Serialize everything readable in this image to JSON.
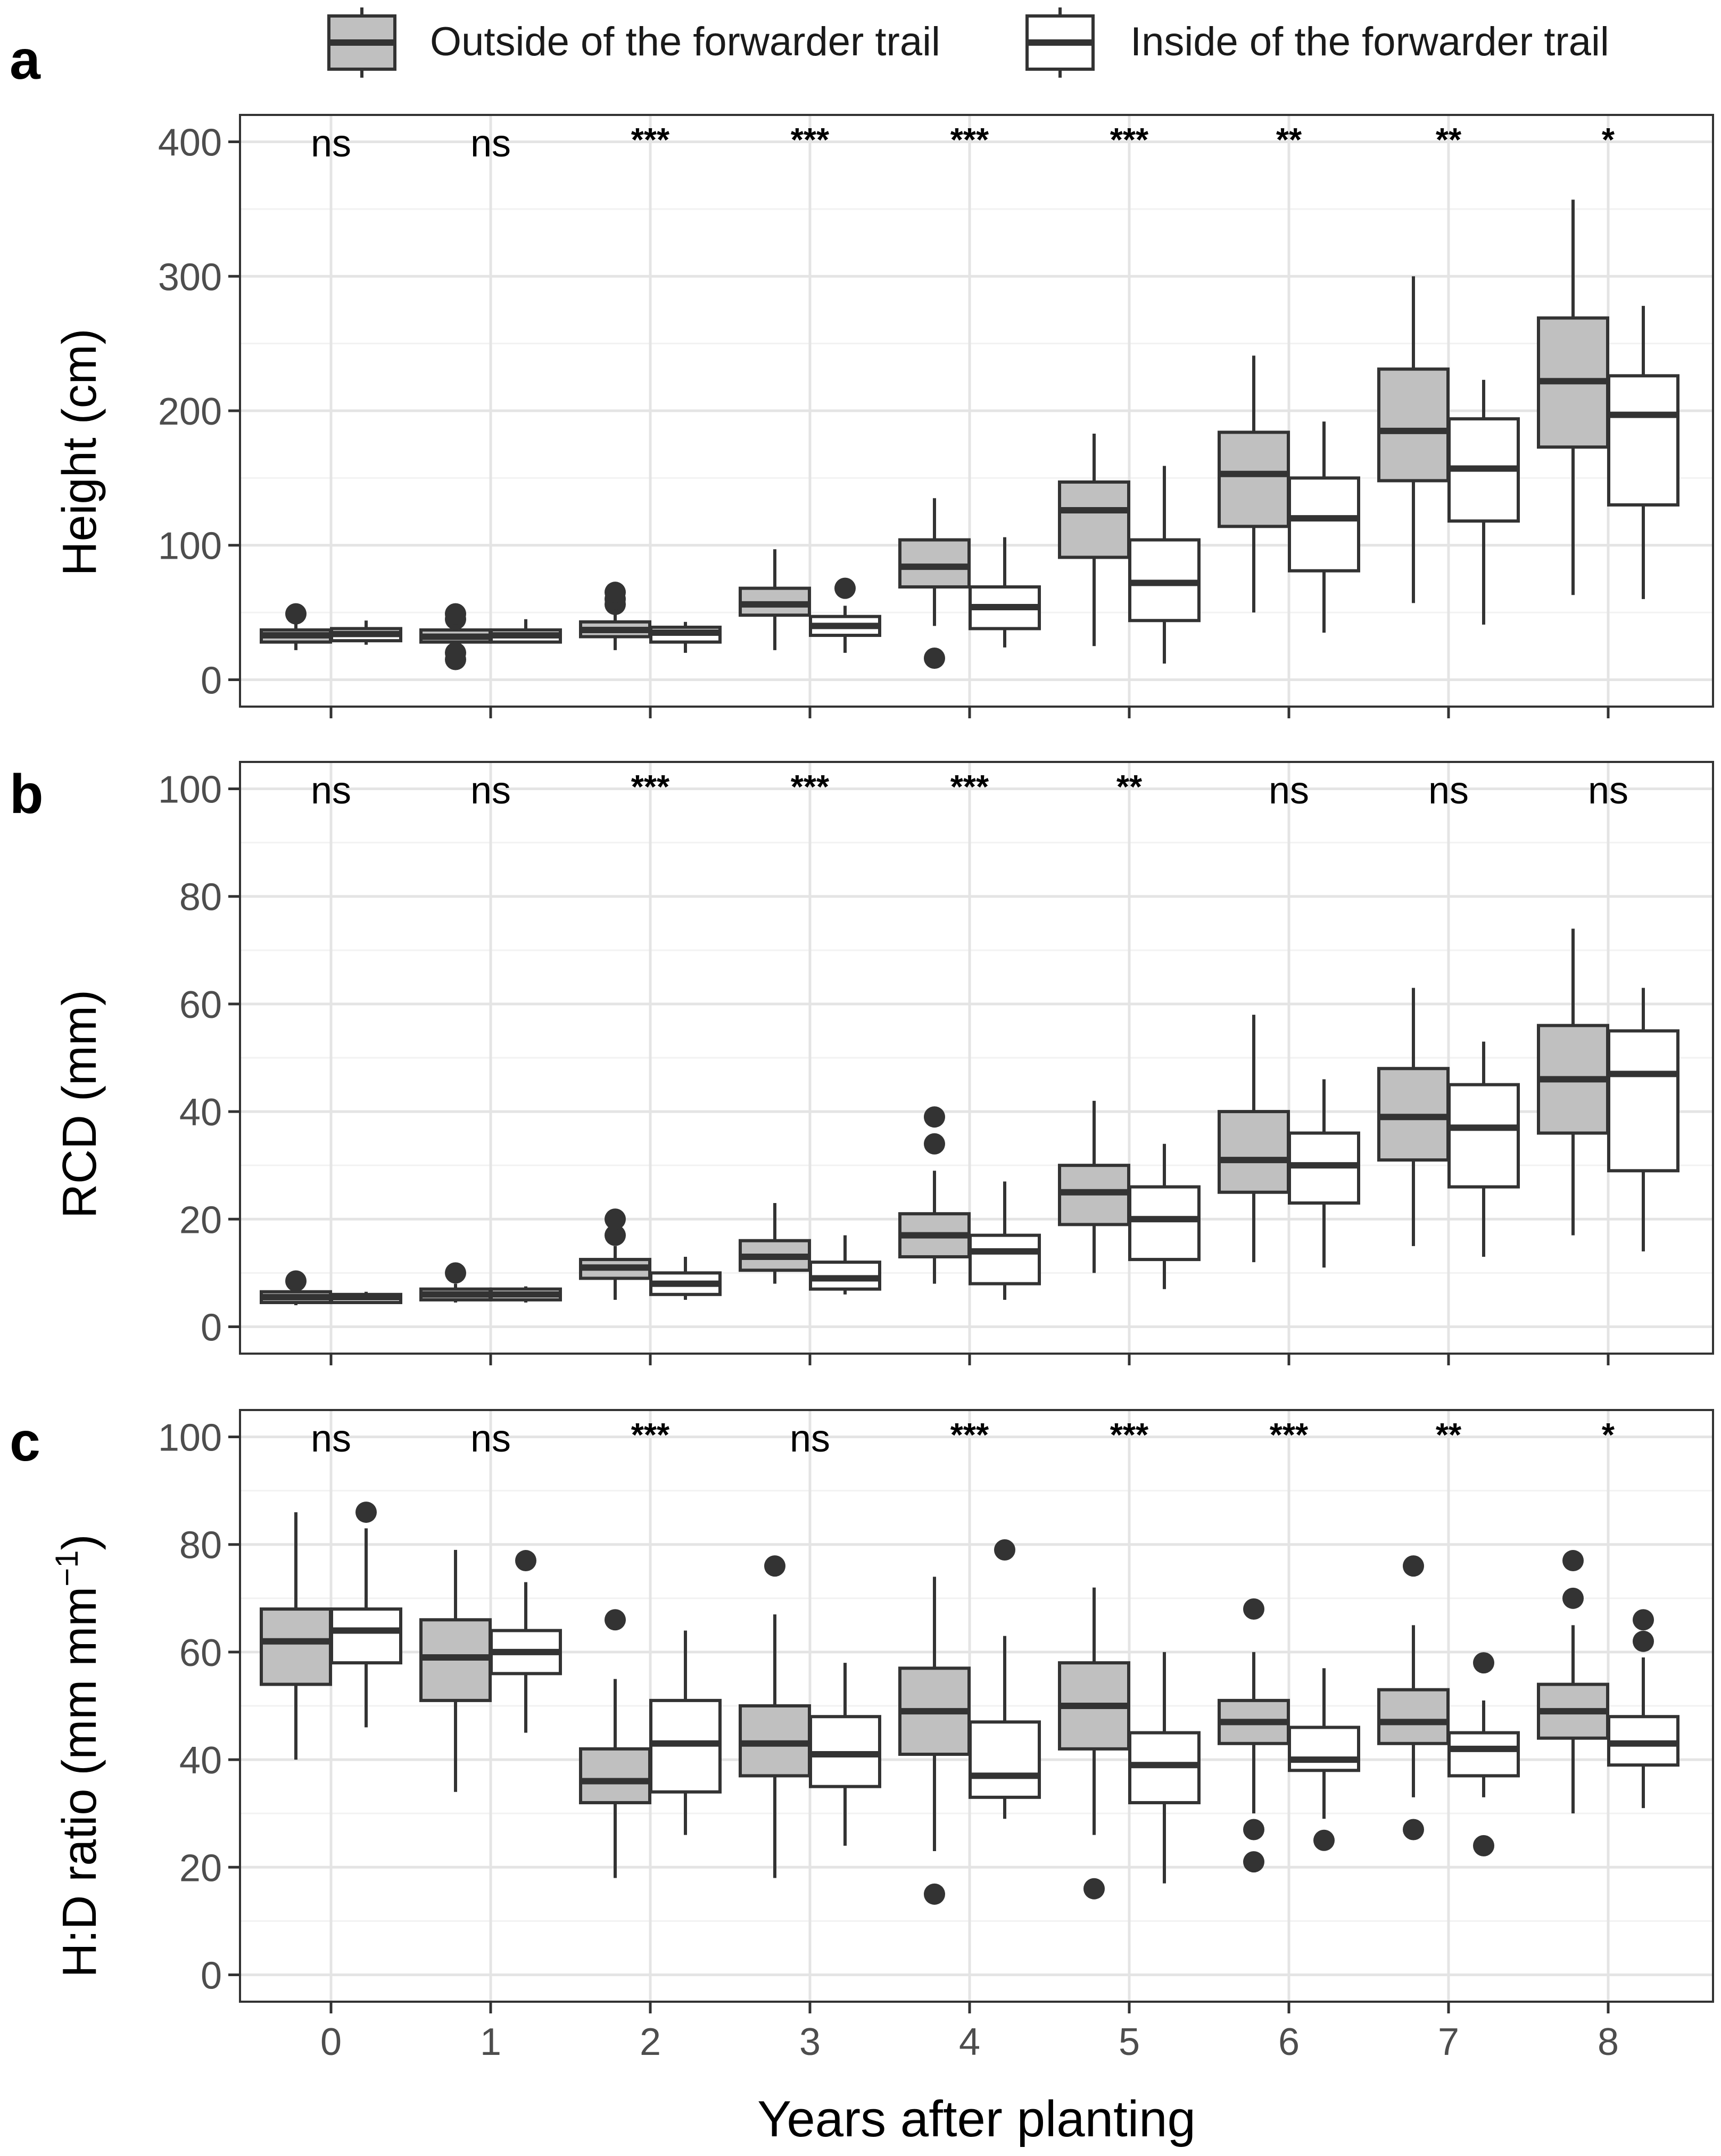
{
  "legend": {
    "outside_label": "Outside of the forwarder trail",
    "inside_label": "Inside of the forwarder trail",
    "outside_fill": "#c0c0c0",
    "inside_fill": "#ffffff",
    "box_stroke": "#333333"
  },
  "x_axis": {
    "label": "Years after planting",
    "ticks": [
      "0",
      "1",
      "2",
      "3",
      "4",
      "5",
      "6",
      "7",
      "8"
    ]
  },
  "chart_data": [
    {
      "type": "boxplot",
      "panel_letter": "a",
      "ylabel": "Height (cm)",
      "ylim": [
        -20,
        420
      ],
      "yticks": [
        0,
        100,
        200,
        300,
        400
      ],
      "ytick_labels": [
        "0",
        "100",
        "200",
        "300",
        "400"
      ],
      "categories": [
        "0",
        "1",
        "2",
        "3",
        "4",
        "5",
        "6",
        "7",
        "8"
      ],
      "significance": [
        "ns",
        "ns",
        "***",
        "***",
        "***",
        "***",
        "**",
        "**",
        "*"
      ],
      "series": [
        {
          "name": "Outside of the forwarder trail",
          "boxes": [
            {
              "min": 22,
              "q1": 28,
              "median": 33,
              "q3": 37,
              "max": 44,
              "outliers": [
                49
              ]
            },
            {
              "min": 23,
              "q1": 28,
              "median": 32,
              "q3": 37,
              "max": 42,
              "outliers": [
                15,
                20,
                45,
                49
              ]
            },
            {
              "min": 22,
              "q1": 32,
              "median": 37,
              "q3": 43,
              "max": 52,
              "outliers": [
                56,
                60,
                65
              ]
            },
            {
              "min": 22,
              "q1": 48,
              "median": 56,
              "q3": 68,
              "max": 97,
              "outliers": []
            },
            {
              "min": 40,
              "q1": 69,
              "median": 84,
              "q3": 104,
              "max": 135,
              "outliers": [
                16
              ]
            },
            {
              "min": 25,
              "q1": 91,
              "median": 126,
              "q3": 147,
              "max": 183,
              "outliers": []
            },
            {
              "min": 50,
              "q1": 114,
              "median": 153,
              "q3": 184,
              "max": 241,
              "outliers": []
            },
            {
              "min": 57,
              "q1": 148,
              "median": 185,
              "q3": 231,
              "max": 300,
              "outliers": []
            },
            {
              "min": 63,
              "q1": 173,
              "median": 222,
              "q3": 269,
              "max": 357,
              "outliers": []
            }
          ]
        },
        {
          "name": "Inside of the forwarder trail",
          "boxes": [
            {
              "min": 26,
              "q1": 29,
              "median": 34,
              "q3": 38,
              "max": 44,
              "outliers": []
            },
            {
              "min": 27,
              "q1": 28,
              "median": 33,
              "q3": 37,
              "max": 45,
              "outliers": []
            },
            {
              "min": 20,
              "q1": 28,
              "median": 35,
              "q3": 39,
              "max": 43,
              "outliers": []
            },
            {
              "min": 20,
              "q1": 33,
              "median": 40,
              "q3": 47,
              "max": 55,
              "outliers": [
                68
              ]
            },
            {
              "min": 24,
              "q1": 38,
              "median": 54,
              "q3": 69,
              "max": 106,
              "outliers": []
            },
            {
              "min": 12,
              "q1": 44,
              "median": 72,
              "q3": 104,
              "max": 159,
              "outliers": []
            },
            {
              "min": 35,
              "q1": 81,
              "median": 120,
              "q3": 150,
              "max": 192,
              "outliers": []
            },
            {
              "min": 41,
              "q1": 118,
              "median": 157,
              "q3": 194,
              "max": 223,
              "outliers": []
            },
            {
              "min": 60,
              "q1": 130,
              "median": 197,
              "q3": 226,
              "max": 278,
              "outliers": []
            }
          ]
        }
      ]
    },
    {
      "type": "boxplot",
      "panel_letter": "b",
      "ylabel": "RCD (mm)",
      "ylim": [
        -5,
        105
      ],
      "yticks": [
        0,
        20,
        40,
        60,
        80,
        100
      ],
      "ytick_labels": [
        "0",
        "20",
        "40",
        "60",
        "80",
        "100"
      ],
      "categories": [
        "0",
        "1",
        "2",
        "3",
        "4",
        "5",
        "6",
        "7",
        "8"
      ],
      "significance": [
        "ns",
        "ns",
        "***",
        "***",
        "***",
        "**",
        "ns",
        "ns",
        "ns"
      ],
      "series": [
        {
          "name": "Outside of the forwarder trail",
          "boxes": [
            {
              "min": 4,
              "q1": 4.5,
              "median": 5.5,
              "q3": 6.5,
              "max": 7,
              "outliers": [
                8.5
              ]
            },
            {
              "min": 4.5,
              "q1": 5,
              "median": 6,
              "q3": 7,
              "max": 8,
              "outliers": [
                10
              ]
            },
            {
              "min": 5,
              "q1": 9,
              "median": 11,
              "q3": 12.5,
              "max": 15,
              "outliers": [
                17,
                20
              ]
            },
            {
              "min": 8,
              "q1": 10.5,
              "median": 13,
              "q3": 16,
              "max": 23,
              "outliers": []
            },
            {
              "min": 8,
              "q1": 13,
              "median": 17,
              "q3": 21,
              "max": 29,
              "outliers": [
                34,
                39
              ]
            },
            {
              "min": 10,
              "q1": 19,
              "median": 25,
              "q3": 30,
              "max": 42,
              "outliers": []
            },
            {
              "min": 12,
              "q1": 25,
              "median": 31,
              "q3": 40,
              "max": 58,
              "outliers": []
            },
            {
              "min": 15,
              "q1": 31,
              "median": 39,
              "q3": 48,
              "max": 63,
              "outliers": []
            },
            {
              "min": 17,
              "q1": 36,
              "median": 46,
              "q3": 56,
              "max": 74,
              "outliers": []
            }
          ]
        },
        {
          "name": "Inside of the forwarder trail",
          "boxes": [
            {
              "min": 4.5,
              "q1": 4.5,
              "median": 5.5,
              "q3": 6,
              "max": 6.5,
              "outliers": []
            },
            {
              "min": 4.5,
              "q1": 5,
              "median": 6,
              "q3": 7,
              "max": 7.5,
              "outliers": []
            },
            {
              "min": 5,
              "q1": 6,
              "median": 8,
              "q3": 10,
              "max": 13,
              "outliers": []
            },
            {
              "min": 6,
              "q1": 7,
              "median": 9,
              "q3": 12,
              "max": 17,
              "outliers": []
            },
            {
              "min": 5,
              "q1": 8,
              "median": 14,
              "q3": 17,
              "max": 27,
              "outliers": []
            },
            {
              "min": 7,
              "q1": 12.5,
              "median": 20,
              "q3": 26,
              "max": 34,
              "outliers": []
            },
            {
              "min": 11,
              "q1": 23,
              "median": 30,
              "q3": 36,
              "max": 46,
              "outliers": []
            },
            {
              "min": 13,
              "q1": 26,
              "median": 37,
              "q3": 45,
              "max": 53,
              "outliers": []
            },
            {
              "min": 14,
              "q1": 29,
              "median": 47,
              "q3": 55,
              "max": 63,
              "outliers": []
            }
          ]
        }
      ]
    },
    {
      "type": "boxplot",
      "panel_letter": "c",
      "ylabel": "H:D ratio (mm mm",
      "ylabel_sup": "−1",
      "ylabel_close": ")",
      "ylim": [
        -5,
        105
      ],
      "yticks": [
        0,
        20,
        40,
        60,
        80,
        100
      ],
      "ytick_labels": [
        "0",
        "20",
        "40",
        "60",
        "80",
        "100"
      ],
      "categories": [
        "0",
        "1",
        "2",
        "3",
        "4",
        "5",
        "6",
        "7",
        "8"
      ],
      "significance": [
        "ns",
        "ns",
        "***",
        "ns",
        "***",
        "***",
        "***",
        "**",
        "*"
      ],
      "series": [
        {
          "name": "Outside of the forwarder trail",
          "boxes": [
            {
              "min": 40,
              "q1": 54,
              "median": 62,
              "q3": 68,
              "max": 86,
              "outliers": []
            },
            {
              "min": 34,
              "q1": 51,
              "median": 59,
              "q3": 66,
              "max": 79,
              "outliers": []
            },
            {
              "min": 18,
              "q1": 32,
              "median": 36,
              "q3": 42,
              "max": 55,
              "outliers": [
                66
              ]
            },
            {
              "min": 18,
              "q1": 37,
              "median": 43,
              "q3": 50,
              "max": 67,
              "outliers": [
                76
              ]
            },
            {
              "min": 23,
              "q1": 41,
              "median": 49,
              "q3": 57,
              "max": 74,
              "outliers": [
                15
              ]
            },
            {
              "min": 26,
              "q1": 42,
              "median": 50,
              "q3": 58,
              "max": 72,
              "outliers": [
                16
              ]
            },
            {
              "min": 30,
              "q1": 43,
              "median": 47,
              "q3": 51,
              "max": 60,
              "outliers": [
                21,
                27,
                68
              ]
            },
            {
              "min": 33,
              "q1": 43,
              "median": 47,
              "q3": 53,
              "max": 65,
              "outliers": [
                27,
                76
              ]
            },
            {
              "min": 30,
              "q1": 44,
              "median": 49,
              "q3": 54,
              "max": 65,
              "outliers": [
                70,
                77
              ]
            }
          ]
        },
        {
          "name": "Inside of the forwarder trail",
          "boxes": [
            {
              "min": 46,
              "q1": 58,
              "median": 64,
              "q3": 68,
              "max": 83,
              "outliers": [
                86
              ]
            },
            {
              "min": 45,
              "q1": 56,
              "median": 60,
              "q3": 64,
              "max": 73,
              "outliers": [
                77
              ]
            },
            {
              "min": 26,
              "q1": 34,
              "median": 43,
              "q3": 51,
              "max": 64,
              "outliers": []
            },
            {
              "min": 24,
              "q1": 35,
              "median": 41,
              "q3": 48,
              "max": 58,
              "outliers": []
            },
            {
              "min": 29,
              "q1": 33,
              "median": 37,
              "q3": 47,
              "max": 63,
              "outliers": [
                79
              ]
            },
            {
              "min": 17,
              "q1": 32,
              "median": 39,
              "q3": 45,
              "max": 60,
              "outliers": []
            },
            {
              "min": 29,
              "q1": 38,
              "median": 40,
              "q3": 46,
              "max": 57,
              "outliers": [
                25
              ]
            },
            {
              "min": 33,
              "q1": 37,
              "median": 42,
              "q3": 45,
              "max": 51,
              "outliers": [
                24,
                58
              ]
            },
            {
              "min": 31,
              "q1": 39,
              "median": 43,
              "q3": 48,
              "max": 59,
              "outliers": [
                62,
                66
              ]
            }
          ]
        }
      ]
    }
  ]
}
